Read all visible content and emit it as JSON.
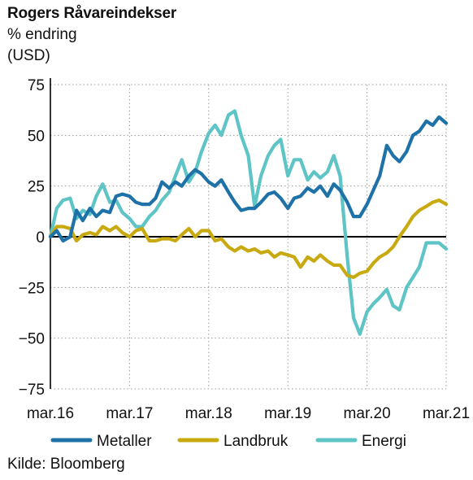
{
  "chart_data": {
    "type": "line",
    "title": "Rogers Råvareindekser",
    "subtitle": [
      "% endring",
      "(USD)"
    ],
    "source": "Kilde: Bloomberg",
    "ylim": [
      -75,
      75
    ],
    "yticks": [
      75,
      50,
      25,
      0,
      -25,
      -50,
      -75
    ],
    "ytick_labels": [
      "75",
      "50",
      "25",
      "0",
      "−25",
      "−50",
      "−75"
    ],
    "xlim": [
      2016.17,
      2021.17
    ],
    "xticks": [
      2016.17,
      2017.17,
      2018.17,
      2019.17,
      2020.17,
      2021.17
    ],
    "xtick_labels": [
      "mar.16",
      "mar.17",
      "mar.18",
      "mar.19",
      "mar.20",
      "mar.21"
    ],
    "grid": "horizontal-dotted",
    "legend": "bottom",
    "series": [
      {
        "name": "Metaller",
        "color": "#1e72a8",
        "points": [
          [
            2016.17,
            0
          ],
          [
            2016.25,
            3
          ],
          [
            2016.33,
            -2
          ],
          [
            2016.42,
            0
          ],
          [
            2016.5,
            13
          ],
          [
            2016.58,
            8
          ],
          [
            2016.67,
            14
          ],
          [
            2016.75,
            10
          ],
          [
            2016.83,
            13
          ],
          [
            2016.92,
            12
          ],
          [
            2017.0,
            20
          ],
          [
            2017.08,
            21
          ],
          [
            2017.17,
            20
          ],
          [
            2017.25,
            17
          ],
          [
            2017.33,
            16
          ],
          [
            2017.42,
            16
          ],
          [
            2017.5,
            19
          ],
          [
            2017.58,
            27
          ],
          [
            2017.67,
            24
          ],
          [
            2017.75,
            27
          ],
          [
            2017.83,
            25
          ],
          [
            2017.92,
            30
          ],
          [
            2018.0,
            33
          ],
          [
            2018.08,
            31
          ],
          [
            2018.17,
            27
          ],
          [
            2018.25,
            25
          ],
          [
            2018.33,
            28
          ],
          [
            2018.42,
            22
          ],
          [
            2018.5,
            17
          ],
          [
            2018.58,
            13
          ],
          [
            2018.67,
            14
          ],
          [
            2018.75,
            14
          ],
          [
            2018.83,
            17
          ],
          [
            2018.92,
            21
          ],
          [
            2019.0,
            22
          ],
          [
            2019.08,
            19
          ],
          [
            2019.17,
            14
          ],
          [
            2019.25,
            19
          ],
          [
            2019.33,
            20
          ],
          [
            2019.42,
            24
          ],
          [
            2019.5,
            22
          ],
          [
            2019.58,
            25
          ],
          [
            2019.67,
            20
          ],
          [
            2019.75,
            26
          ],
          [
            2019.83,
            23
          ],
          [
            2019.92,
            17
          ],
          [
            2020.0,
            10
          ],
          [
            2020.08,
            10
          ],
          [
            2020.17,
            16
          ],
          [
            2020.25,
            23
          ],
          [
            2020.33,
            30
          ],
          [
            2020.42,
            45
          ],
          [
            2020.5,
            40
          ],
          [
            2020.58,
            37
          ],
          [
            2020.67,
            42
          ],
          [
            2020.75,
            50
          ],
          [
            2020.83,
            52
          ],
          [
            2020.92,
            57
          ],
          [
            2021.0,
            55
          ],
          [
            2021.08,
            59
          ],
          [
            2021.17,
            56
          ]
        ]
      },
      {
        "name": "Landbruk",
        "color": "#c8aa10",
        "points": [
          [
            2016.17,
            0
          ],
          [
            2016.25,
            5
          ],
          [
            2016.33,
            5
          ],
          [
            2016.42,
            4
          ],
          [
            2016.5,
            -2
          ],
          [
            2016.58,
            1
          ],
          [
            2016.67,
            2
          ],
          [
            2016.75,
            1
          ],
          [
            2016.83,
            5
          ],
          [
            2016.92,
            3
          ],
          [
            2017.0,
            5
          ],
          [
            2017.08,
            2
          ],
          [
            2017.17,
            0
          ],
          [
            2017.25,
            3
          ],
          [
            2017.33,
            4
          ],
          [
            2017.42,
            -2
          ],
          [
            2017.5,
            -2
          ],
          [
            2017.58,
            -1
          ],
          [
            2017.67,
            -1
          ],
          [
            2017.75,
            -2
          ],
          [
            2017.83,
            1
          ],
          [
            2017.92,
            4
          ],
          [
            2018.0,
            0
          ],
          [
            2018.08,
            3
          ],
          [
            2018.17,
            3
          ],
          [
            2018.25,
            -2
          ],
          [
            2018.33,
            -1
          ],
          [
            2018.42,
            -5
          ],
          [
            2018.5,
            -7
          ],
          [
            2018.58,
            -5
          ],
          [
            2018.67,
            -7
          ],
          [
            2018.75,
            -6
          ],
          [
            2018.83,
            -8
          ],
          [
            2018.92,
            -7
          ],
          [
            2019.0,
            -10
          ],
          [
            2019.08,
            -8
          ],
          [
            2019.17,
            -9
          ],
          [
            2019.25,
            -10
          ],
          [
            2019.33,
            -15
          ],
          [
            2019.42,
            -10
          ],
          [
            2019.5,
            -12
          ],
          [
            2019.58,
            -9
          ],
          [
            2019.67,
            -12
          ],
          [
            2019.75,
            -14
          ],
          [
            2019.83,
            -14
          ],
          [
            2019.92,
            -19
          ],
          [
            2020.0,
            -20
          ],
          [
            2020.08,
            -18
          ],
          [
            2020.17,
            -17
          ],
          [
            2020.25,
            -13
          ],
          [
            2020.33,
            -10
          ],
          [
            2020.42,
            -8
          ],
          [
            2020.5,
            -5
          ],
          [
            2020.58,
            0
          ],
          [
            2020.67,
            5
          ],
          [
            2020.75,
            10
          ],
          [
            2020.83,
            13
          ],
          [
            2020.92,
            15
          ],
          [
            2021.0,
            17
          ],
          [
            2021.08,
            18
          ],
          [
            2021.17,
            16
          ]
        ]
      },
      {
        "name": "Energi",
        "color": "#5ec4c6",
        "points": [
          [
            2016.17,
            0
          ],
          [
            2016.25,
            14
          ],
          [
            2016.33,
            18
          ],
          [
            2016.42,
            19
          ],
          [
            2016.5,
            9
          ],
          [
            2016.58,
            13
          ],
          [
            2016.67,
            11
          ],
          [
            2016.75,
            20
          ],
          [
            2016.83,
            26
          ],
          [
            2016.92,
            17
          ],
          [
            2017.0,
            18
          ],
          [
            2017.08,
            12
          ],
          [
            2017.17,
            9
          ],
          [
            2017.25,
            5
          ],
          [
            2017.33,
            5
          ],
          [
            2017.42,
            10
          ],
          [
            2017.5,
            13
          ],
          [
            2017.58,
            18
          ],
          [
            2017.67,
            22
          ],
          [
            2017.75,
            30
          ],
          [
            2017.83,
            38
          ],
          [
            2017.92,
            27
          ],
          [
            2018.0,
            32
          ],
          [
            2018.08,
            42
          ],
          [
            2018.17,
            51
          ],
          [
            2018.25,
            55
          ],
          [
            2018.33,
            50
          ],
          [
            2018.42,
            60
          ],
          [
            2018.5,
            62
          ],
          [
            2018.58,
            50
          ],
          [
            2018.67,
            40
          ],
          [
            2018.75,
            15
          ],
          [
            2018.83,
            30
          ],
          [
            2018.92,
            40
          ],
          [
            2019.0,
            45
          ],
          [
            2019.08,
            48
          ],
          [
            2019.17,
            30
          ],
          [
            2019.25,
            38
          ],
          [
            2019.33,
            38
          ],
          [
            2019.42,
            28
          ],
          [
            2019.5,
            32
          ],
          [
            2019.58,
            29
          ],
          [
            2019.67,
            32
          ],
          [
            2019.75,
            40
          ],
          [
            2019.83,
            30
          ],
          [
            2019.92,
            -10
          ],
          [
            2020.0,
            -40
          ],
          [
            2020.08,
            -48
          ],
          [
            2020.17,
            -37
          ],
          [
            2020.25,
            -33
          ],
          [
            2020.33,
            -30
          ],
          [
            2020.42,
            -26
          ],
          [
            2020.5,
            -34
          ],
          [
            2020.58,
            -36
          ],
          [
            2020.67,
            -25
          ],
          [
            2020.75,
            -20
          ],
          [
            2020.83,
            -15
          ],
          [
            2020.92,
            -3
          ],
          [
            2021.0,
            -3
          ],
          [
            2021.08,
            -3
          ],
          [
            2021.17,
            -6
          ]
        ]
      }
    ]
  }
}
